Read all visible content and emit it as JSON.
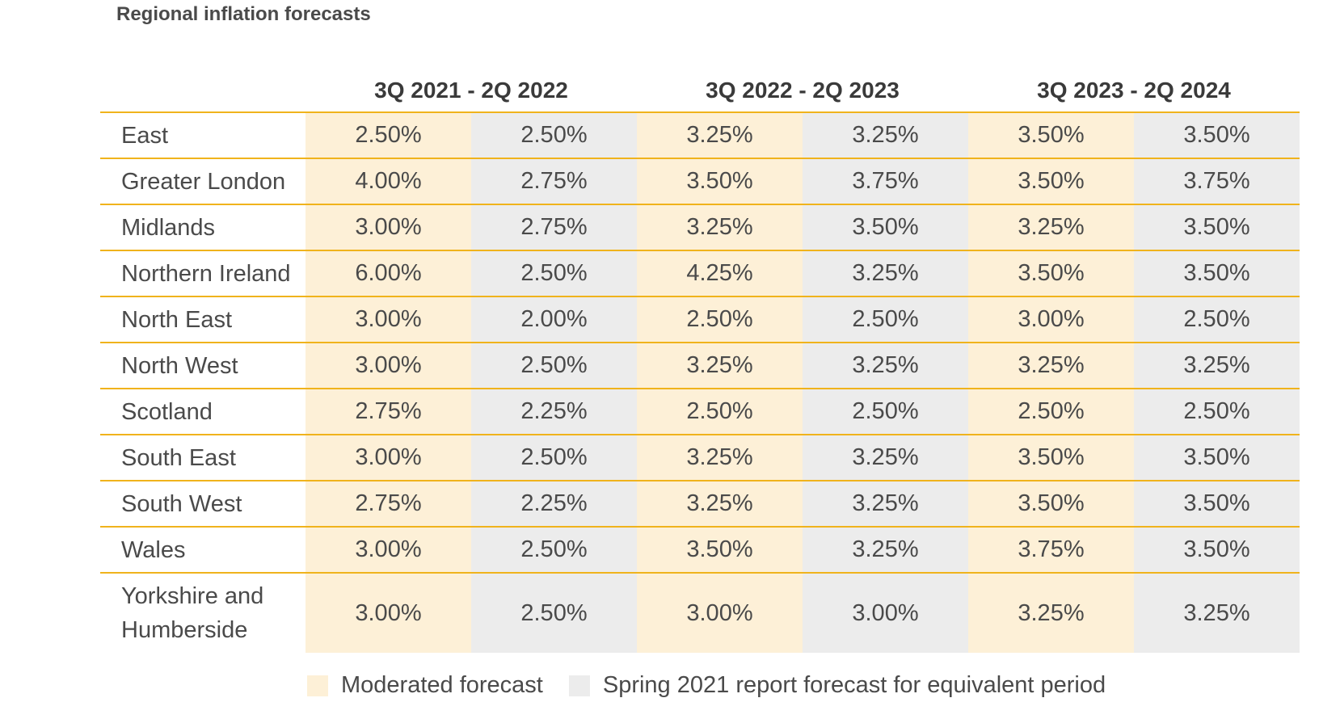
{
  "title": "Regional inflation forecasts",
  "periods": [
    "3Q 2021 - 2Q 2022",
    "3Q 2022 - 2Q 2023",
    "3Q 2023 - 2Q 2024"
  ],
  "rows": [
    {
      "region": "East",
      "values": [
        "2.50%",
        "2.50%",
        "3.25%",
        "3.25%",
        "3.50%",
        "3.50%"
      ]
    },
    {
      "region": "Greater London",
      "values": [
        "4.00%",
        "2.75%",
        "3.50%",
        "3.75%",
        "3.50%",
        "3.75%"
      ]
    },
    {
      "region": "Midlands",
      "values": [
        "3.00%",
        "2.75%",
        "3.25%",
        "3.50%",
        "3.25%",
        "3.50%"
      ]
    },
    {
      "region": "Northern Ireland",
      "values": [
        "6.00%",
        "2.50%",
        "4.25%",
        "3.25%",
        "3.50%",
        "3.50%"
      ]
    },
    {
      "region": "North East",
      "values": [
        "3.00%",
        "2.00%",
        "2.50%",
        "2.50%",
        "3.00%",
        "2.50%"
      ]
    },
    {
      "region": "North West",
      "values": [
        "3.00%",
        "2.50%",
        "3.25%",
        "3.25%",
        "3.25%",
        "3.25%"
      ]
    },
    {
      "region": "Scotland",
      "values": [
        "2.75%",
        "2.25%",
        "2.50%",
        "2.50%",
        "2.50%",
        "2.50%"
      ]
    },
    {
      "region": "South East",
      "values": [
        "3.00%",
        "2.50%",
        "3.25%",
        "3.25%",
        "3.50%",
        "3.50%"
      ]
    },
    {
      "region": "South West",
      "values": [
        "2.75%",
        "2.25%",
        "3.25%",
        "3.25%",
        "3.50%",
        "3.50%"
      ]
    },
    {
      "region": "Wales",
      "values": [
        "3.00%",
        "2.50%",
        "3.50%",
        "3.25%",
        "3.75%",
        "3.50%"
      ]
    },
    {
      "region": "Yorkshire and Humberside",
      "values": [
        "3.00%",
        "2.50%",
        "3.00%",
        "3.00%",
        "3.25%",
        "3.25%"
      ]
    }
  ],
  "legend": {
    "moderated": "Moderated forecast",
    "spring": "Spring 2021 report forecast for equivalent period"
  },
  "colors": {
    "moderated": "#fdf0d7",
    "spring": "#ececec",
    "rule": "#f0b31c"
  }
}
